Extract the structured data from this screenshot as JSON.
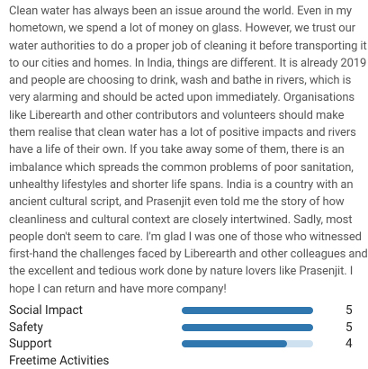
{
  "review": {
    "lines": [
      "Clean water has always been an issue around the world. Even in my",
      "hometown, we spend a lot of money on glass. However, we trust our",
      "water authorities to do a proper job of cleaning it before transporting it",
      "to our cities and homes. In India, things are different. It is already 2019",
      "and people are choosing to drink, wash and bathe in rivers, which is",
      "very alarming and should be acted upon immediately. Organisations",
      "like Liberearth and other contributors and volunteers should make",
      "them realise that clean water has a lot of positive impacts and rivers",
      "have a life of their own. If you take away some of them, there is an",
      "imbalance which spreads the common problems of poor sanitation,",
      "unhealthy lifestyles and shorter life spans. India is a country with an",
      "ancient cultural script, and Prasenjit even told me the story of how",
      "cleanliness and cultural context are closely intertwined. Sadly, most",
      "people don't seem to care. I'm glad I was one of those who witnessed",
      "first-hand the challenges faced by Liberearth and other colleagues and",
      "the excellent and tedious work done by nature lovers like Prasenjit. I",
      "hope I can return and have more company!"
    ]
  },
  "ratings": {
    "scale": [
      0,
      5
    ],
    "items": [
      {
        "label": "Social Impact",
        "value": 5
      },
      {
        "label": "Safety",
        "value": 5
      },
      {
        "label": "Support",
        "value": 4
      },
      {
        "label": "Freetime Activities"
      }
    ]
  }
}
